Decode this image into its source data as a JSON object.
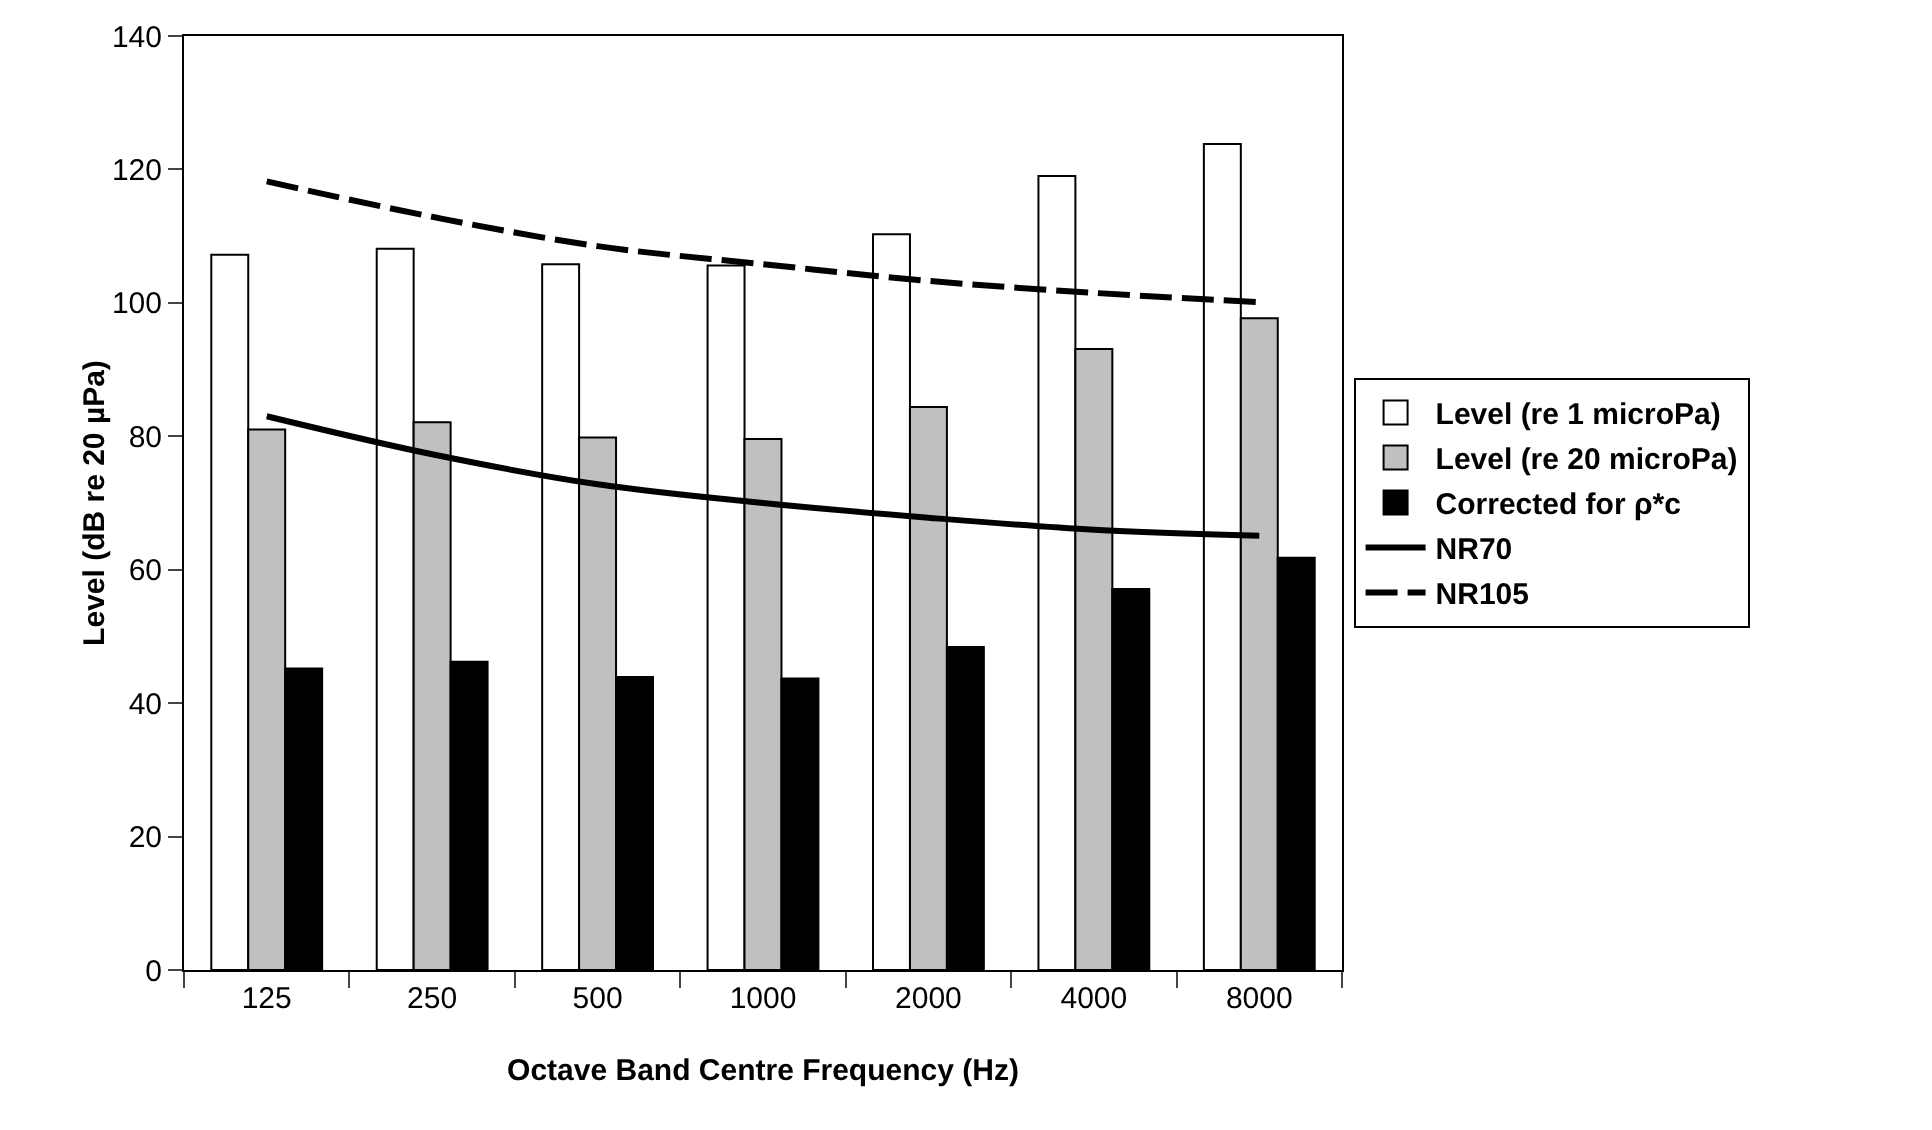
{
  "chart_data": {
    "type": "bar",
    "xlabel": "Octave Band Centre Frequency (Hz)",
    "ylabel": "Level (dB re 20 µPa)",
    "categories": [
      "125",
      "250",
      "500",
      "1000",
      "2000",
      "4000",
      "8000"
    ],
    "series": [
      {
        "name": "Level (re 1 microPa)",
        "color": "#ffffff",
        "values": [
          107.2,
          108.1,
          105.8,
          105.6,
          110.3,
          119,
          123.8
        ]
      },
      {
        "name": "Level (re 20 microPa)",
        "color": "#c0c0c0",
        "values": [
          81,
          82.1,
          79.8,
          79.6,
          84.4,
          93.1,
          97.7
        ]
      },
      {
        "name": "Corrected for ρ*c",
        "color": "#000000",
        "values": [
          45.2,
          46.2,
          43.9,
          43.7,
          48.4,
          57.1,
          61.8
        ]
      },
      {
        "name": "NR70",
        "type": "line",
        "line_style": "solid",
        "color": "#000000",
        "values": [
          83,
          77.3,
          72.8,
          70,
          67.8,
          66,
          65.1
        ]
      },
      {
        "name": "NR105",
        "type": "line",
        "line_style": "dashed",
        "color": "#000000",
        "values": [
          118.2,
          112.9,
          108.5,
          105.8,
          103.3,
          101.5,
          100.1
        ]
      }
    ],
    "ylim": [
      0,
      140
    ],
    "yticks": [
      0,
      20,
      40,
      60,
      80,
      100,
      120,
      140
    ],
    "grid": false,
    "legend": "right",
    "marker": "none"
  }
}
